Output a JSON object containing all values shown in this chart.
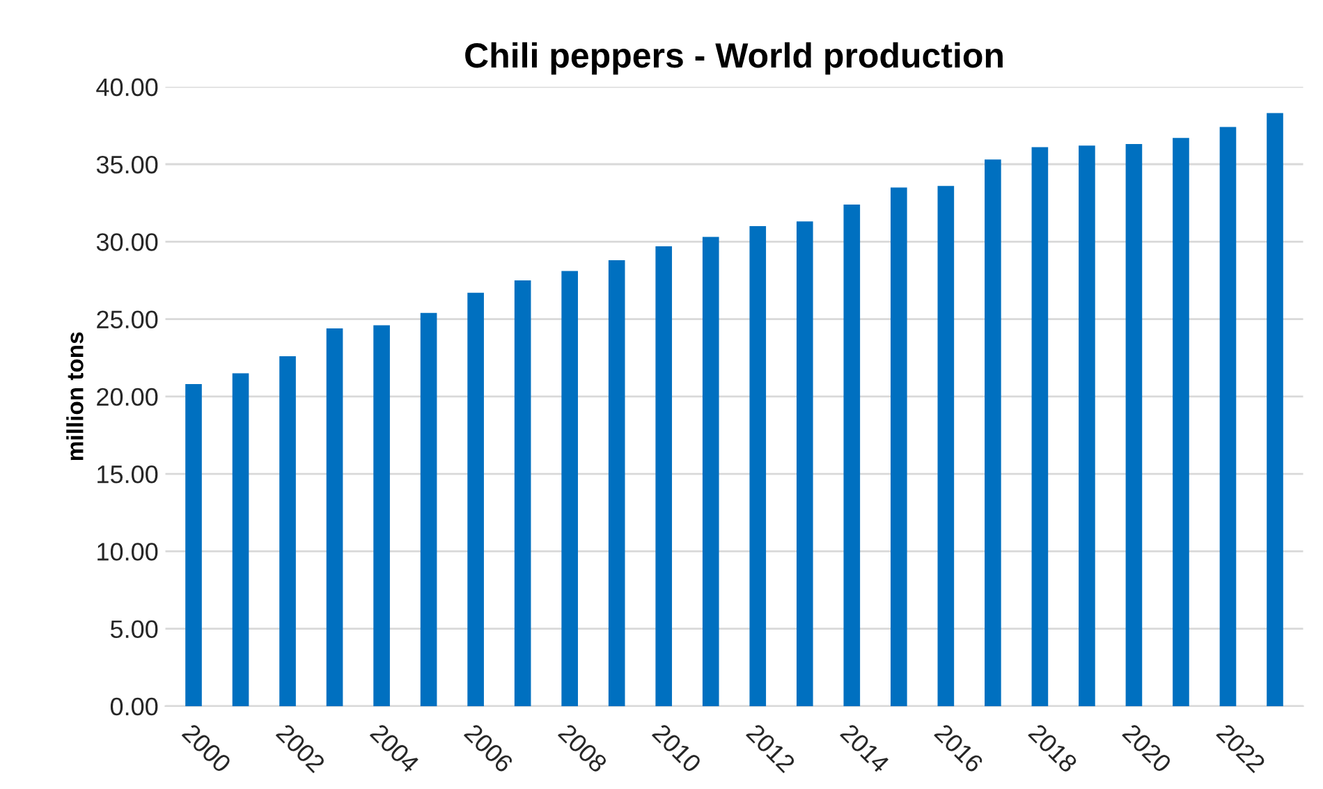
{
  "chart_data": {
    "type": "bar",
    "title": "Chili peppers - World production",
    "ylabel": "million tons",
    "categories": [
      "2000",
      null,
      "2002",
      null,
      "2004",
      null,
      "2006",
      null,
      "2008",
      null,
      "2010",
      null,
      "2012",
      null,
      "2014",
      null,
      "2016",
      null,
      "2018",
      null,
      "2020",
      null,
      "2022",
      null
    ],
    "values": [
      20.8,
      21.5,
      22.6,
      24.4,
      24.6,
      25.4,
      26.7,
      27.5,
      28.1,
      28.8,
      29.7,
      30.3,
      31.0,
      31.3,
      32.4,
      33.5,
      33.6,
      35.3,
      36.1,
      36.2,
      36.3,
      36.7,
      37.4,
      38.3
    ],
    "color": "#0070c0",
    "ylim": [
      0,
      40
    ],
    "yticks": [
      {
        "value": 0,
        "label": "0.00"
      },
      {
        "value": 5,
        "label": "5.00"
      },
      {
        "value": 10,
        "label": "10.00"
      },
      {
        "value": 15,
        "label": "15.00"
      },
      {
        "value": 20,
        "label": "20.00"
      },
      {
        "value": 25,
        "label": "25.00"
      },
      {
        "value": 30,
        "label": "30.00"
      },
      {
        "value": 35,
        "label": "35.00"
      },
      {
        "value": 40,
        "label": "40.00"
      }
    ],
    "grid": "y"
  }
}
